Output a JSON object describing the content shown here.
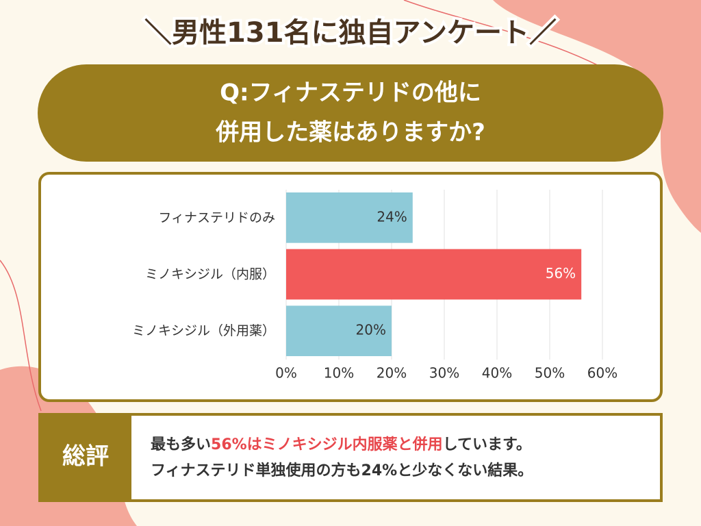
{
  "header": {
    "title": "＼男性131名に独自アンケート／"
  },
  "question": {
    "lines": [
      "Q:フィナステリドの他に",
      "併用した薬はありますか?"
    ]
  },
  "chart_data": {
    "type": "bar",
    "orientation": "horizontal",
    "categories": [
      "フィナステリドのみ",
      "ミノキシジル（内服）",
      "ミノキシジル（外用薬）"
    ],
    "values": [
      24,
      56,
      20
    ],
    "value_labels": [
      "24%",
      "56%",
      "20%"
    ],
    "colors": [
      "#8ecad8",
      "#f25a5a",
      "#8ecad8"
    ],
    "label_colors": [
      "#333333",
      "#ffffff",
      "#333333"
    ],
    "xlim": [
      0,
      60
    ],
    "xticks": [
      {
        "value": 0,
        "label": "0%"
      },
      {
        "value": 10,
        "label": "10%"
      },
      {
        "value": 20,
        "label": "20%"
      },
      {
        "value": 30,
        "label": "30%"
      },
      {
        "value": 40,
        "label": "40%"
      },
      {
        "value": 50,
        "label": "50%"
      },
      {
        "value": 60,
        "label": "60%"
      }
    ],
    "grid": true
  },
  "summary": {
    "label": "総評",
    "lines": [
      [
        {
          "text": "最も多い"
        },
        {
          "text": "56%はミノキシジル内服薬と併用",
          "color": "#e8474c"
        },
        {
          "text": "しています。"
        }
      ],
      [
        {
          "text": "フィナステリド単独使用の方も24%と少なくない結果。"
        }
      ]
    ]
  }
}
